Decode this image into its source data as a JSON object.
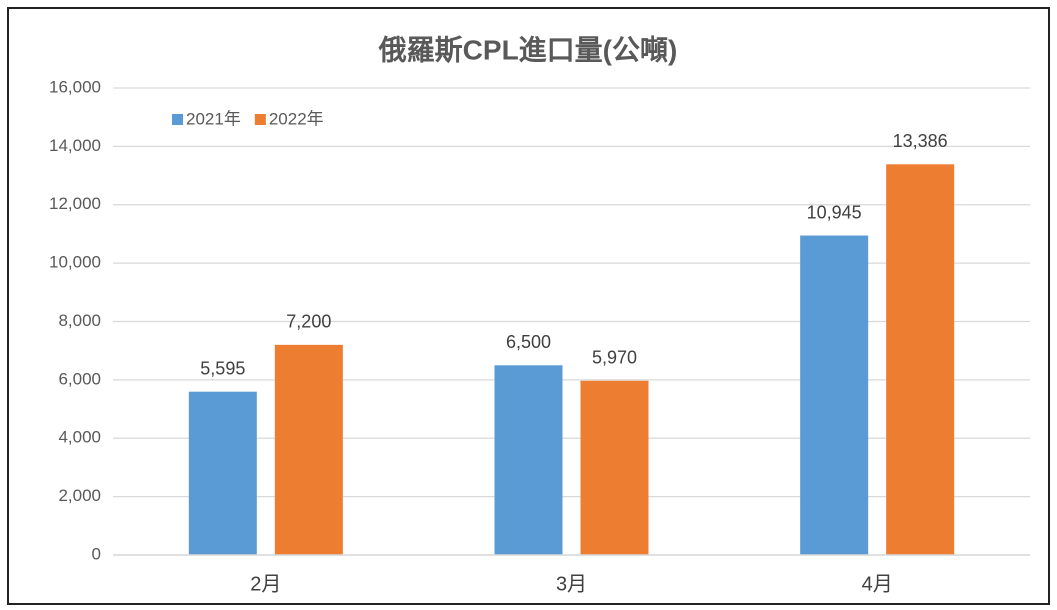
{
  "chart_data": {
    "type": "bar",
    "title": "俄羅斯CPL進口量(公噸)",
    "categories": [
      "2月",
      "3月",
      "4月"
    ],
    "series": [
      {
        "name": "2021年",
        "color": "#5b9bd5",
        "values": [
          5595,
          6500,
          10945
        ],
        "value_labels": [
          "5,595",
          "6,500",
          "10,945"
        ]
      },
      {
        "name": "2022年",
        "color": "#ed7d31",
        "values": [
          7200,
          5970,
          13386
        ],
        "value_labels": [
          "7,200",
          "5,970",
          "13,386"
        ]
      }
    ],
    "ylim": [
      0,
      16000
    ],
    "yticks": [
      0,
      {
        "value": 2000,
        "label": "2,000"
      },
      {
        "value": 4000,
        "label": "4,000"
      },
      {
        "value": 6000,
        "label": "6,000"
      },
      {
        "value": 8000,
        "label": "8,000"
      },
      {
        "value": 10000,
        "label": "10,000"
      },
      {
        "value": 12000,
        "label": "12,000"
      },
      {
        "value": 14000,
        "label": "14,000"
      },
      {
        "value": 16000,
        "label": "16,000"
      }
    ],
    "grid": true,
    "legend": "top-left"
  }
}
